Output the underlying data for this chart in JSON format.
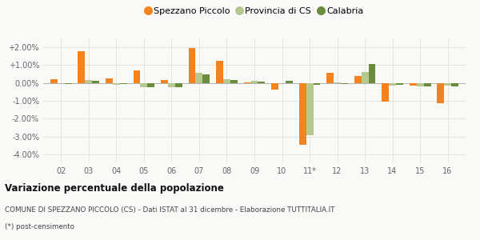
{
  "categories": [
    "02",
    "03",
    "04",
    "05",
    "06",
    "07",
    "08",
    "09",
    "10",
    "11*",
    "12",
    "13",
    "14",
    "15",
    "16"
  ],
  "spezzano": [
    0.2,
    1.8,
    0.25,
    0.7,
    0.18,
    1.95,
    1.25,
    0.05,
    -0.35,
    -3.45,
    0.55,
    0.4,
    -1.05,
    -0.15,
    -1.15
  ],
  "provincia": [
    0.0,
    0.15,
    -0.1,
    -0.25,
    -0.25,
    0.55,
    0.2,
    0.1,
    0.0,
    -2.95,
    0.05,
    0.6,
    -0.15,
    -0.2,
    -0.15
  ],
  "calabria": [
    -0.05,
    0.12,
    -0.05,
    -0.22,
    -0.22,
    0.5,
    0.18,
    0.08,
    0.1,
    -0.1,
    -0.05,
    1.05,
    -0.1,
    -0.18,
    -0.18
  ],
  "color_spezzano": "#f4821e",
  "color_provincia": "#b5c98e",
  "color_calabria": "#6b8c3e",
  "title": "Variazione percentuale della popolazione",
  "subtitle": "COMUNE DI SPEZZANO PICCOLO (CS) - Dati ISTAT al 31 dicembre - Elaborazione TUTTITALIA.IT",
  "footnote": "(*) post-censimento",
  "ylim": [
    -4.5,
    2.5
  ],
  "yticks": [
    -4.0,
    -3.0,
    -2.0,
    -1.0,
    0.0,
    1.0,
    2.0
  ],
  "ytick_labels": [
    "-4.00%",
    "-3.00%",
    "-2.00%",
    "-1.00%",
    "0.00%",
    "+1.00%",
    "+2.00%"
  ],
  "bg_color": "#f9f9f7",
  "grid_color": "#d8d8d8",
  "bar_width": 0.26
}
